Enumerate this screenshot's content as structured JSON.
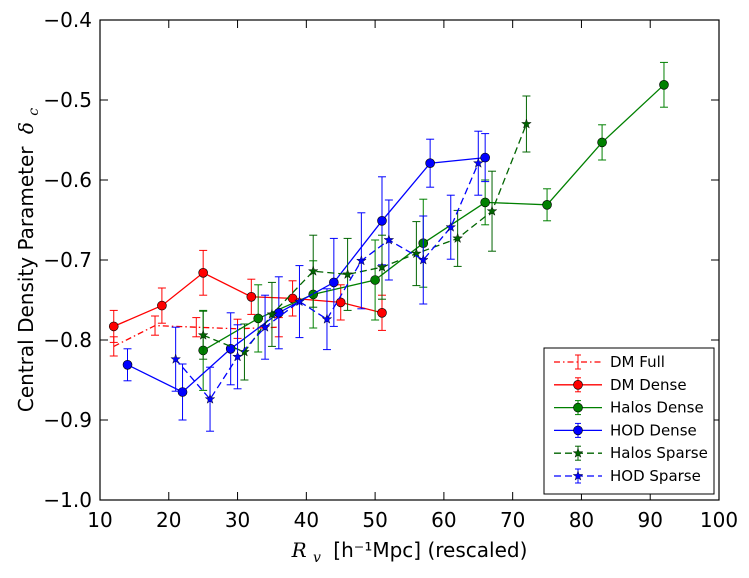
{
  "chart_data": {
    "type": "line",
    "title": "",
    "xlabel": "[h⁻¹Mpc] (rescaled)",
    "xlabel_symbol": "R",
    "xlabel_subscript": "v",
    "ylabel": "Central Density Parameter",
    "ylabel_symbol": "δ",
    "ylabel_subscript": "c",
    "xlim": [
      10,
      100
    ],
    "ylim": [
      -1.0,
      -0.4
    ],
    "xticks": [
      10,
      20,
      30,
      40,
      50,
      60,
      70,
      80,
      90,
      100
    ],
    "xtick_labels": [
      "10",
      "20",
      "30",
      "40",
      "50",
      "60",
      "70",
      "80",
      "90",
      "100"
    ],
    "yticks": [
      -1.0,
      -0.9,
      -0.8,
      -0.7,
      -0.6,
      -0.5,
      -0.4
    ],
    "ytick_labels": [
      "−1.0",
      "−0.9",
      "−0.8",
      "−0.7",
      "−0.6",
      "−0.5",
      "−0.4"
    ],
    "grid": false,
    "legend_position": "bottom-right",
    "series": [
      {
        "name": "DM Full",
        "color": "#ff0000",
        "linestyle": "dashdot",
        "marker": "none",
        "x": [
          12,
          18,
          24,
          30,
          36
        ],
        "y": [
          -0.808,
          -0.782,
          -0.784,
          -0.786,
          -0.784
        ],
        "err": [
          0.012,
          0.012,
          0.012,
          0.012,
          0.012
        ]
      },
      {
        "name": "DM Dense",
        "color": "#ff0000",
        "linestyle": "solid",
        "marker": "circle",
        "x": [
          12,
          19,
          25,
          32,
          38,
          45,
          51
        ],
        "y": [
          -0.783,
          -0.757,
          -0.716,
          -0.746,
          -0.748,
          -0.753,
          -0.766
        ],
        "err": [
          0.02,
          0.022,
          0.028,
          0.022,
          0.022,
          0.022,
          0.022
        ]
      },
      {
        "name": "Halos Dense",
        "color": "#008000",
        "linestyle": "solid",
        "marker": "circle",
        "x": [
          25,
          33,
          41,
          50,
          57,
          66,
          75,
          83,
          92
        ],
        "y": [
          -0.813,
          -0.773,
          -0.743,
          -0.725,
          -0.679,
          -0.628,
          -0.631,
          -0.553,
          -0.481
        ],
        "err": [
          0.05,
          0.042,
          0.042,
          0.05,
          0.055,
          0.028,
          0.02,
          0.022,
          0.028
        ]
      },
      {
        "name": "HOD Dense",
        "color": "#0000ff",
        "linestyle": "solid",
        "marker": "circle",
        "x": [
          14,
          22,
          29,
          36,
          44,
          51,
          58,
          66
        ],
        "y": [
          -0.831,
          -0.865,
          -0.811,
          -0.766,
          -0.728,
          -0.651,
          -0.579,
          -0.572
        ],
        "err": [
          0.02,
          0.035,
          0.045,
          0.045,
          0.055,
          0.055,
          0.03,
          0.03
        ]
      },
      {
        "name": "Halos Sparse",
        "color": "#006400",
        "linestyle": "dashed",
        "marker": "star",
        "x": [
          25,
          31,
          35,
          41,
          46,
          51,
          56,
          62,
          67,
          72
        ],
        "y": [
          -0.794,
          -0.815,
          -0.768,
          -0.714,
          -0.718,
          -0.709,
          -0.692,
          -0.673,
          -0.639,
          -0.53
        ],
        "err": [
          0.03,
          0.035,
          0.04,
          0.045,
          0.045,
          0.04,
          0.04,
          0.035,
          0.05,
          0.035
        ]
      },
      {
        "name": "HOD Sparse",
        "color": "#0000ff",
        "linestyle": "dashed",
        "marker": "star",
        "x": [
          21,
          26,
          30,
          34,
          39,
          43,
          48,
          52,
          57,
          61,
          65
        ],
        "y": [
          -0.824,
          -0.874,
          -0.821,
          -0.784,
          -0.752,
          -0.774,
          -0.701,
          -0.675,
          -0.7,
          -0.659,
          -0.579
        ],
        "err": [
          0.04,
          0.04,
          0.04,
          0.04,
          0.045,
          0.038,
          0.06,
          0.05,
          0.055,
          0.04,
          0.04
        ]
      }
    ]
  }
}
